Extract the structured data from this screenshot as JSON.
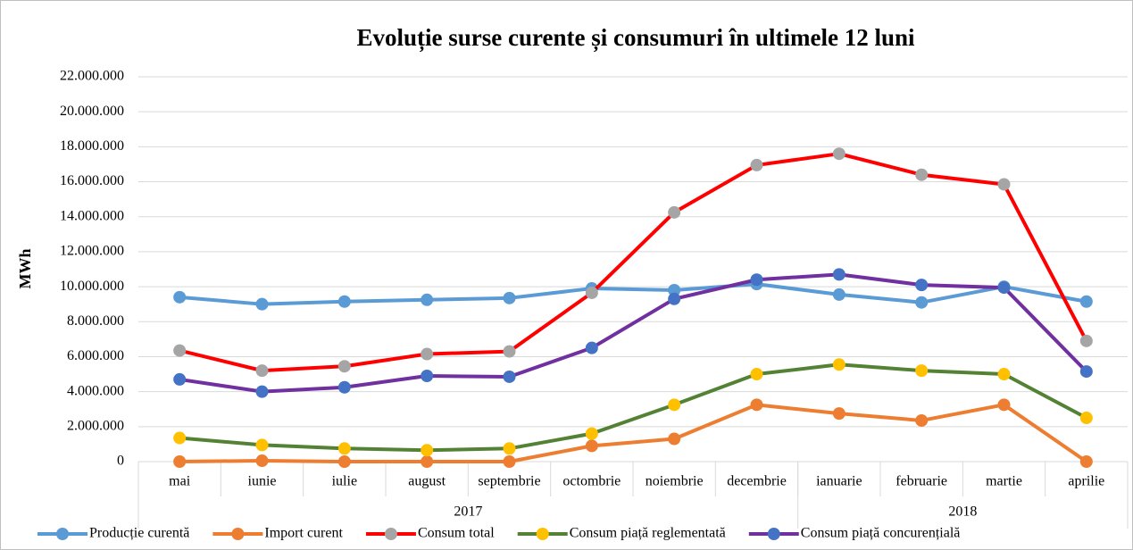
{
  "chart_data": {
    "type": "line",
    "title": "Evoluție surse curente și consumuri în ultimele 12 luni",
    "y_label": "MWh",
    "categories": [
      "mai",
      "iunie",
      "iulie",
      "august",
      "septembrie",
      "octombrie",
      "noiembrie",
      "decembrie",
      "ianuarie",
      "februarie",
      "martie",
      "aprilie"
    ],
    "groups": [
      {
        "label": "2017",
        "count": 8
      },
      {
        "label": "2018",
        "count": 4
      }
    ],
    "ylim": [
      0,
      22000000
    ],
    "yticks": [
      0,
      {
        "value": 2000000,
        "label": "2.000.000"
      },
      {
        "value": 4000000,
        "label": "4.000.000"
      },
      {
        "value": 6000000,
        "label": "6.000.000"
      },
      {
        "value": 8000000,
        "label": "8.000.000"
      },
      {
        "value": 10000000,
        "label": "10.000.000"
      },
      {
        "value": 12000000,
        "label": "12.000.000"
      },
      {
        "value": 14000000,
        "label": "14.000.000"
      },
      {
        "value": 16000000,
        "label": "16.000.000"
      },
      {
        "value": 18000000,
        "label": "18.000.000"
      },
      {
        "value": 20000000,
        "label": "20.000.000"
      },
      {
        "value": 22000000,
        "label": "22.000.000"
      }
    ],
    "grid": true,
    "legend": "bottom",
    "series": [
      {
        "name": "Producție curentă",
        "color": "#5b9bd5",
        "marker_color": "#5b9bd5",
        "values": [
          9400000,
          9000000,
          9150000,
          9250000,
          9350000,
          9900000,
          9800000,
          10150000,
          9550000,
          9100000,
          10000000,
          9150000
        ]
      },
      {
        "name": "Import curent",
        "color": "#ed7d31",
        "marker_color": "#ed7d31",
        "values": [
          0,
          50000,
          0,
          0,
          0,
          900000,
          1300000,
          3250000,
          2750000,
          2350000,
          3250000,
          0
        ]
      },
      {
        "name": "Consum total",
        "color": "#ff0000",
        "marker_color": "#a5a5a5",
        "values": [
          6350000,
          5200000,
          5450000,
          6150000,
          6300000,
          9650000,
          14250000,
          16950000,
          17600000,
          16400000,
          15850000,
          6900000
        ]
      },
      {
        "name": "Consum piață reglementată",
        "color": "#548235",
        "marker_color": "#ffc000",
        "values": [
          1350000,
          950000,
          750000,
          650000,
          750000,
          1600000,
          3250000,
          5000000,
          5550000,
          5200000,
          5000000,
          2500000
        ]
      },
      {
        "name": "Consum piață concurențială",
        "color": "#7030a0",
        "marker_color": "#4472c4",
        "values": [
          4700000,
          4000000,
          4250000,
          4900000,
          4850000,
          6500000,
          9300000,
          10400000,
          10700000,
          10100000,
          9950000,
          5150000
        ]
      }
    ]
  }
}
